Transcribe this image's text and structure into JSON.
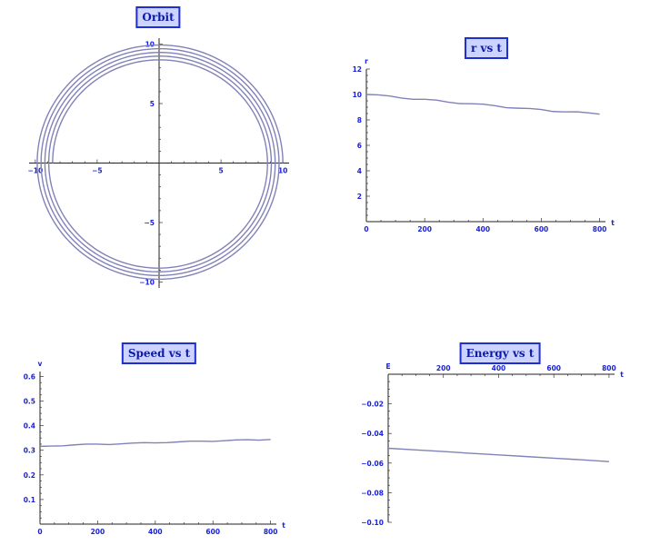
{
  "colors": {
    "axis": "#1a22d8",
    "curve": "#8082b8",
    "title_bg": "#ccd3ff",
    "title_border": "#1f2fd0"
  },
  "chart_data": [
    {
      "id": "orbit",
      "type": "line",
      "title": "Orbit",
      "xlabel": "",
      "ylabel": "",
      "xlim": [
        -10.5,
        10.5
      ],
      "ylim": [
        -10.5,
        10.5
      ],
      "xticks": [
        -10,
        -5,
        5,
        10
      ],
      "yticks": [
        -10,
        -5,
        5,
        10
      ],
      "xtick_labels": [
        "−10",
        "−5",
        "5",
        "10"
      ],
      "ytick_labels": [
        "−10",
        "−5",
        "5",
        "10"
      ],
      "spiral": {
        "r_start": 10.0,
        "r_end": 8.6,
        "turns": 4.5,
        "start_angle_deg": 0
      }
    },
    {
      "id": "r",
      "type": "line",
      "title": "r vs t",
      "xlabel": "t",
      "ylabel": "r",
      "xlim": [
        0,
        820
      ],
      "ylim": [
        0,
        12
      ],
      "xticks": [
        0,
        200,
        400,
        600,
        800
      ],
      "yticks": [
        2,
        4,
        6,
        8,
        10,
        12
      ],
      "xtick_labels": [
        "0",
        "200",
        "400",
        "600",
        "800"
      ],
      "ytick_labels": [
        "2",
        "4",
        "6",
        "8",
        "10",
        "12"
      ],
      "x": [
        0,
        40,
        80,
        120,
        160,
        200,
        240,
        280,
        320,
        360,
        400,
        440,
        480,
        520,
        560,
        600,
        640,
        680,
        720,
        760,
        800
      ],
      "y": [
        10.0,
        9.97,
        9.88,
        9.72,
        9.62,
        9.62,
        9.56,
        9.4,
        9.28,
        9.27,
        9.24,
        9.12,
        8.96,
        8.92,
        8.9,
        8.82,
        8.66,
        8.63,
        8.64,
        8.56,
        8.45
      ]
    },
    {
      "id": "speed",
      "type": "line",
      "title": "Speed vs t",
      "xlabel": "t",
      "ylabel": "v",
      "xlim": [
        0,
        820
      ],
      "ylim": [
        0,
        0.62
      ],
      "xticks": [
        0,
        200,
        400,
        600,
        800
      ],
      "yticks": [
        0.1,
        0.2,
        0.3,
        0.4,
        0.5,
        0.6
      ],
      "xtick_labels": [
        "0",
        "200",
        "400",
        "600",
        "800"
      ],
      "ytick_labels": [
        "0.1",
        "0.2",
        "0.3",
        "0.4",
        "0.5",
        "0.6"
      ],
      "x": [
        0,
        40,
        80,
        120,
        160,
        200,
        240,
        280,
        320,
        360,
        400,
        440,
        480,
        520,
        560,
        600,
        640,
        680,
        720,
        760,
        800
      ],
      "y": [
        0.316,
        0.317,
        0.318,
        0.322,
        0.325,
        0.325,
        0.323,
        0.326,
        0.329,
        0.331,
        0.33,
        0.331,
        0.334,
        0.337,
        0.337,
        0.336,
        0.339,
        0.342,
        0.343,
        0.341,
        0.344
      ]
    },
    {
      "id": "energy",
      "type": "line",
      "title": "Energy vs t",
      "xlabel": "t",
      "ylabel": "E",
      "xlim": [
        0,
        820
      ],
      "ylim": [
        -0.1,
        0.0
      ],
      "xticks": [
        200,
        400,
        600,
        800
      ],
      "yticks": [
        -0.02,
        -0.04,
        -0.06,
        -0.08,
        -0.1
      ],
      "xtick_labels": [
        "200",
        "400",
        "600",
        "800"
      ],
      "ytick_labels": [
        "−0.02",
        "−0.04",
        "−0.06",
        "−0.08",
        "−0.10"
      ],
      "x": [
        0,
        100,
        200,
        300,
        400,
        500,
        600,
        700,
        800
      ],
      "y": [
        -0.05,
        -0.0511,
        -0.0522,
        -0.0534,
        -0.0545,
        -0.0556,
        -0.0567,
        -0.0578,
        -0.059
      ]
    }
  ]
}
